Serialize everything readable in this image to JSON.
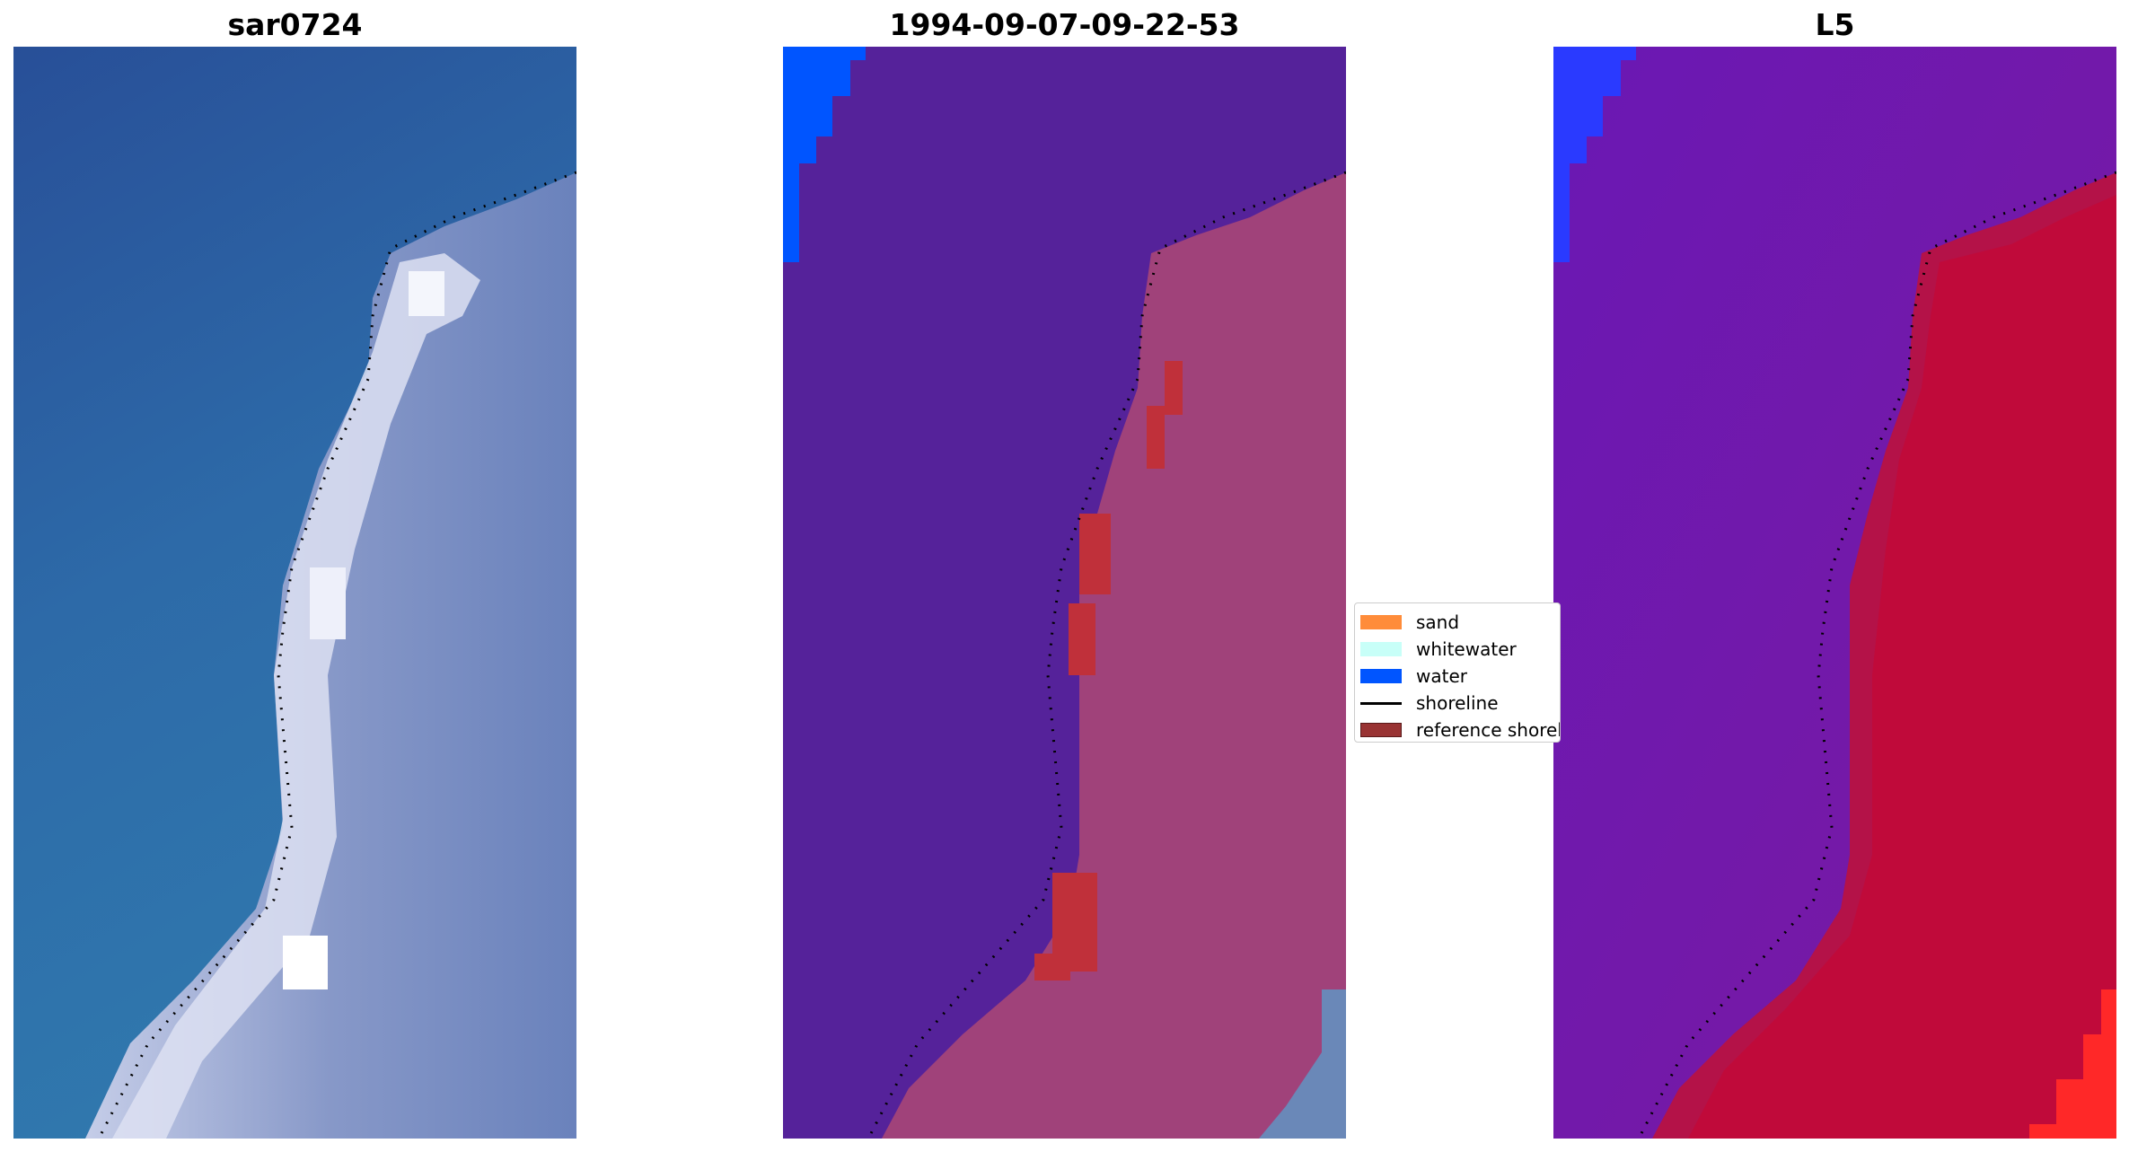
{
  "panels": [
    {
      "title": "sar0724"
    },
    {
      "title": "1994-09-07-09-22-53"
    },
    {
      "title": "L5"
    }
  ],
  "legend": {
    "items": [
      {
        "label": "sand",
        "color": "#ff8c3a",
        "kind": "patch"
      },
      {
        "label": "whitewater",
        "color": "#c8fff8",
        "kind": "patch"
      },
      {
        "label": "water",
        "color": "#0055ff",
        "kind": "patch"
      },
      {
        "label": "shoreline",
        "color": "#000000",
        "kind": "line"
      },
      {
        "label": "reference shoreline",
        "color": "#993333",
        "kind": "patch"
      }
    ]
  },
  "colors": {
    "rgb_sea": "#2f6aa8",
    "rgb_surf": "#d8dcf0",
    "rgb_land": "#7a8cc4",
    "class_sea": "#55229a",
    "class_land": "#a0427a",
    "class_water": "#0055ff",
    "class_red": "#c0303a",
    "class_blue_land": "#6a88b8",
    "mndwi_sea": "#6a10b0",
    "mndwi_land": "#c00a3a",
    "mndwi_water": "#2a3aff",
    "mndwi_bright": "#ff2828"
  }
}
